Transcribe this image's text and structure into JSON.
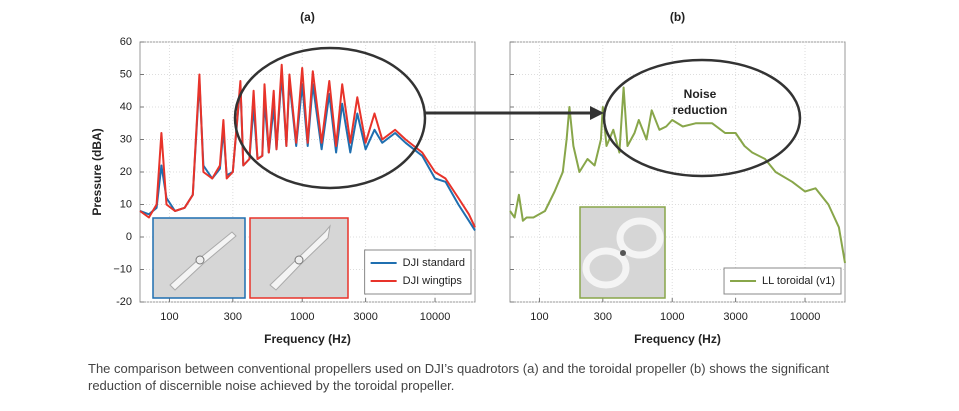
{
  "chart_data": [
    {
      "type": "line",
      "title": "(a)",
      "x_label": "Frequency (Hz)",
      "y_label": "Pressure (dBA)",
      "x": [
        60,
        70,
        80,
        87,
        95,
        110,
        130,
        150,
        168,
        180,
        210,
        240,
        255,
        270,
        300,
        342,
        360,
        400,
        430,
        460,
        500,
        520,
        560,
        610,
        640,
        700,
        760,
        800,
        900,
        1000,
        1100,
        1200,
        1400,
        1600,
        1800,
        2000,
        2300,
        2600,
        3000,
        3500,
        4000,
        5000,
        6000,
        8000,
        10000,
        12000,
        15000,
        18000,
        20000
      ],
      "series": [
        {
          "name": "DJI standard",
          "color": "#1f6fb0",
          "values": [
            8,
            7,
            9,
            22,
            12,
            8,
            9,
            13,
            48,
            22,
            18,
            21,
            33,
            19,
            20,
            47,
            22,
            24,
            40,
            24,
            25,
            42,
            26,
            40,
            27,
            50,
            28,
            48,
            28,
            47,
            28,
            47,
            27,
            44,
            26,
            41,
            26,
            38,
            27,
            33,
            29,
            32,
            29,
            25,
            18,
            17,
            10,
            5,
            2
          ]
        },
        {
          "name": "DJI wingtips",
          "color": "#e8332a",
          "values": [
            8,
            6,
            10,
            32,
            10,
            8,
            9,
            13,
            50,
            20,
            18,
            22,
            36,
            18,
            20,
            48,
            22,
            24,
            45,
            24,
            25,
            47,
            26,
            45,
            27,
            53,
            28,
            50,
            29,
            52,
            29,
            51,
            29,
            48,
            28,
            47,
            29,
            43,
            29,
            38,
            30,
            33,
            30,
            26,
            20,
            18,
            12,
            7,
            3
          ]
        }
      ],
      "xlim": [
        60,
        20000
      ],
      "xticks": [
        100,
        300,
        1000,
        3000,
        10000
      ],
      "log_x": true,
      "ylim": [
        -20,
        60
      ],
      "yticks": [
        -20,
        {
          "value": -10,
          "label": "−10"
        },
        0,
        10,
        20,
        30,
        40,
        50,
        60
      ],
      "grid": true,
      "legend": "lower right"
    },
    {
      "type": "line",
      "title": "(b)",
      "x_label": "Frequency (Hz)",
      "annotation": "Noise reduction",
      "x": [
        60,
        65,
        70,
        75,
        80,
        90,
        110,
        130,
        150,
        160,
        168,
        180,
        200,
        230,
        260,
        290,
        300,
        320,
        360,
        400,
        430,
        460,
        520,
        560,
        640,
        700,
        800,
        900,
        1000,
        1200,
        1500,
        2000,
        2500,
        3000,
        3500,
        4000,
        5000,
        6000,
        8000,
        10000,
        12000,
        15000,
        18000,
        20000
      ],
      "series": [
        {
          "name": "LL toroidal (v1)",
          "color": "#88a64a",
          "values": [
            8,
            6,
            13,
            5,
            6,
            6,
            8,
            14,
            20,
            30,
            40,
            28,
            20,
            24,
            22,
            30,
            40,
            28,
            33,
            26,
            46,
            28,
            32,
            36,
            30,
            39,
            33,
            34,
            36,
            34,
            35,
            35,
            32,
            32,
            28,
            26,
            24,
            20,
            17,
            14,
            15,
            10,
            3,
            -8
          ]
        }
      ],
      "xlim": [
        60,
        20000
      ],
      "xticks": [
        100,
        300,
        1000,
        3000,
        10000
      ],
      "log_x": true,
      "ylim": [
        -20,
        60
      ],
      "yticks": [
        -20,
        -10,
        0,
        10,
        20,
        30,
        40,
        50,
        60
      ],
      "grid": true,
      "legend": "lower right"
    }
  ],
  "caption": "The comparison between conventional  propellers used on DJI’s quadrotors (a) and the toroidal propeller (b) shows the significant reduction of discernible noise achieved by the toroidal propeller."
}
